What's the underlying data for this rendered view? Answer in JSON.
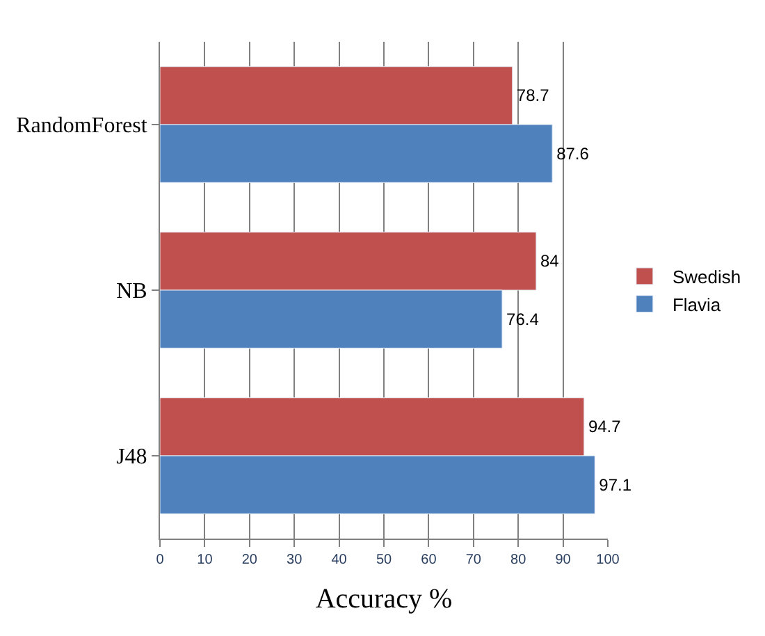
{
  "chart_data": {
    "type": "bar",
    "orientation": "horizontal",
    "xlabel": "Accuracy %",
    "categories": [
      "RandomForest",
      "NB",
      "J48"
    ],
    "series": [
      {
        "name": "Swedish",
        "color": "#c0504d",
        "values": [
          78.7,
          84,
          94.7
        ]
      },
      {
        "name": "Flavia",
        "color": "#4f81bd",
        "values": [
          87.6,
          76.4,
          97.1
        ]
      }
    ],
    "xlim": [
      0,
      100
    ],
    "xticks": [
      0,
      10,
      20,
      30,
      40,
      50,
      60,
      70,
      80,
      90,
      100
    ],
    "grid": "x",
    "legend": "right",
    "data_labels": true
  }
}
